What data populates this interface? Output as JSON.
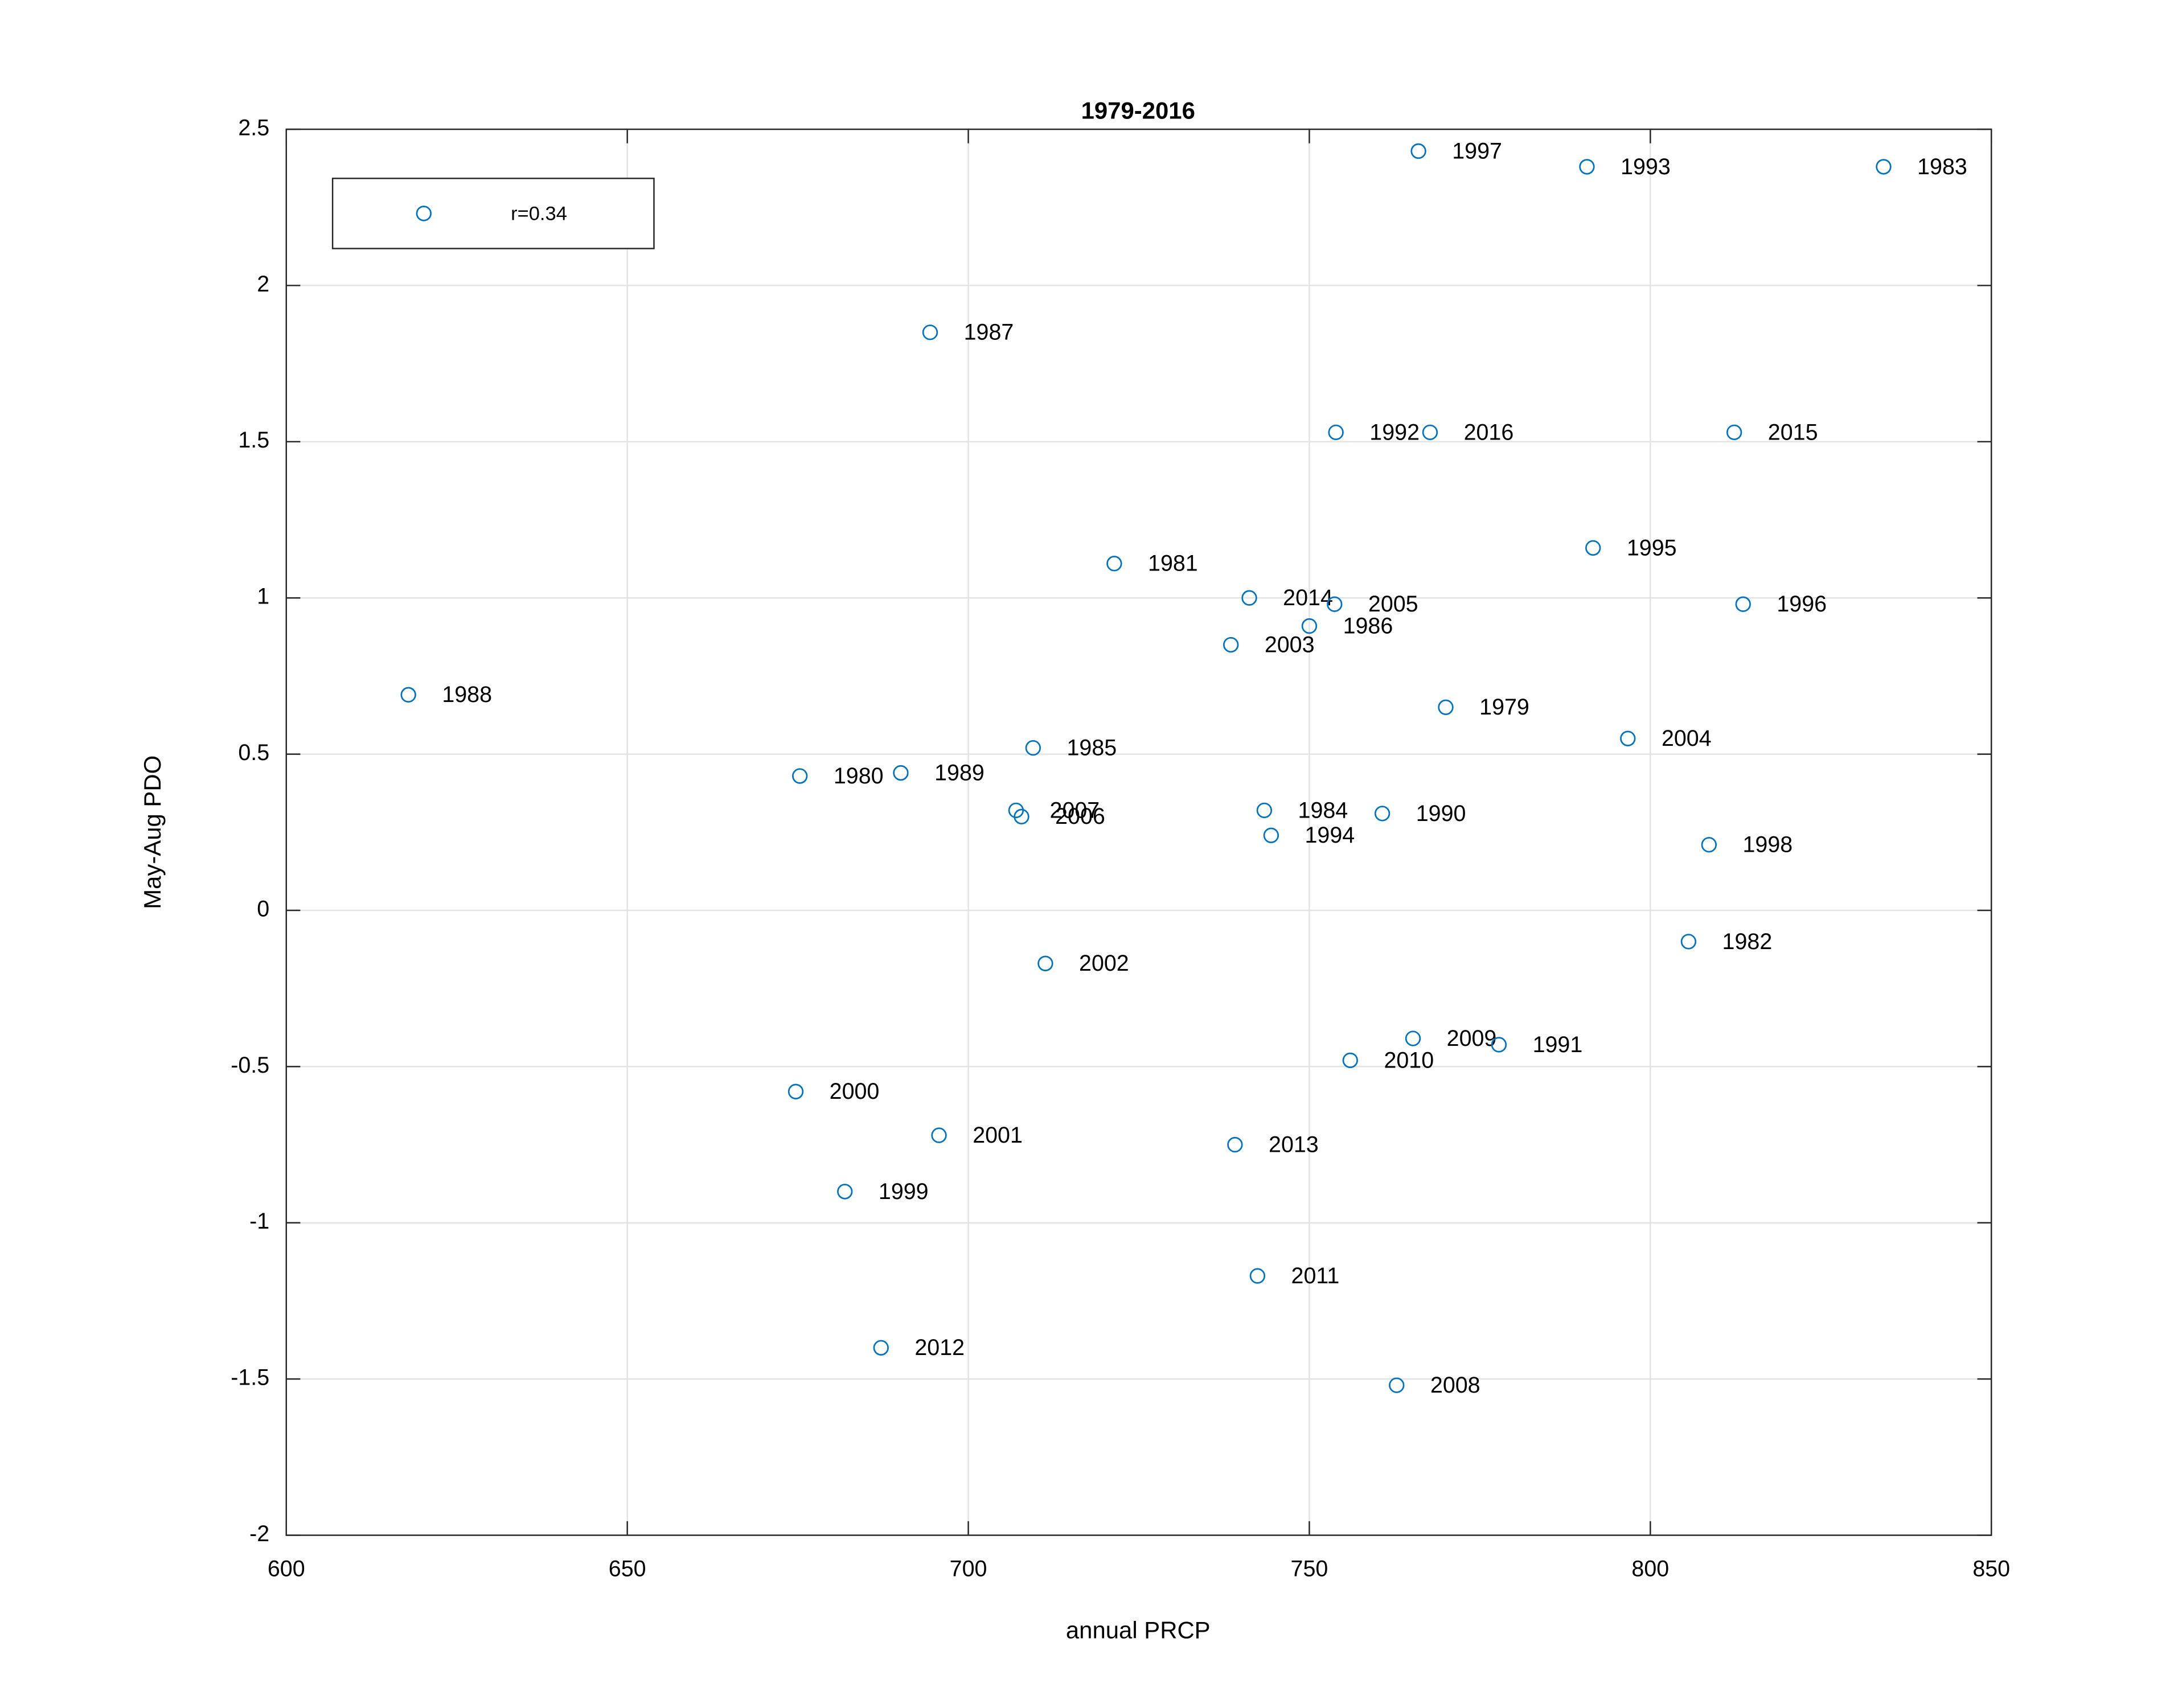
{
  "chart_data": {
    "type": "scatter",
    "title": "1979-2016",
    "xlabel": "annual PRCP",
    "ylabel": "May-Aug PDO",
    "xlim": [
      600,
      850
    ],
    "xticks": [
      600,
      650,
      700,
      750,
      800,
      850
    ],
    "ylim": [
      -2,
      2.5
    ],
    "yticks": [
      -2,
      -1.5,
      -1,
      -0.5,
      0,
      0.5,
      1,
      1.5,
      2,
      2.5
    ],
    "grid": true,
    "legend": "upper left",
    "series": [
      {
        "name": "r=0.34",
        "color": "#0072bd",
        "labels": [
          "1997",
          "1993",
          "1983",
          "1987",
          "1992",
          "2016",
          "2015",
          "1995",
          "1981",
          "2014",
          "2005",
          "1996",
          "1986",
          "2003",
          "1988",
          "1979",
          "2004",
          "1985",
          "1980",
          "1989",
          "2007",
          "2006",
          "1984",
          "1990",
          "1994",
          "1998",
          "1982",
          "2002",
          "2009",
          "1991",
          "2010",
          "2000",
          "2001",
          "2013",
          "1999",
          "2011",
          "2012",
          "2008"
        ],
        "x": [
          766.0,
          790.7,
          834.2,
          694.4,
          753.9,
          767.7,
          812.3,
          791.6,
          721.4,
          741.2,
          753.7,
          813.6,
          750.0,
          738.5,
          617.9,
          770.0,
          796.7,
          709.5,
          675.3,
          690.1,
          707.0,
          707.8,
          743.4,
          760.7,
          744.4,
          808.6,
          805.6,
          711.3,
          765.2,
          777.8,
          756.0,
          674.7,
          695.7,
          739.1,
          681.9,
          742.4,
          687.2,
          762.8
        ],
        "values": [
          2.43,
          2.38,
          2.38,
          1.85,
          1.53,
          1.53,
          1.53,
          1.16,
          1.11,
          1.0,
          0.98,
          0.98,
          0.91,
          0.85,
          0.69,
          0.65,
          0.55,
          0.52,
          0.43,
          0.44,
          0.32,
          0.3,
          0.32,
          0.31,
          0.24,
          0.21,
          -0.1,
          -0.17,
          -0.41,
          -0.43,
          -0.48,
          -0.58,
          -0.72,
          -0.75,
          -0.9,
          -1.17,
          -1.4,
          -1.52
        ]
      }
    ]
  }
}
